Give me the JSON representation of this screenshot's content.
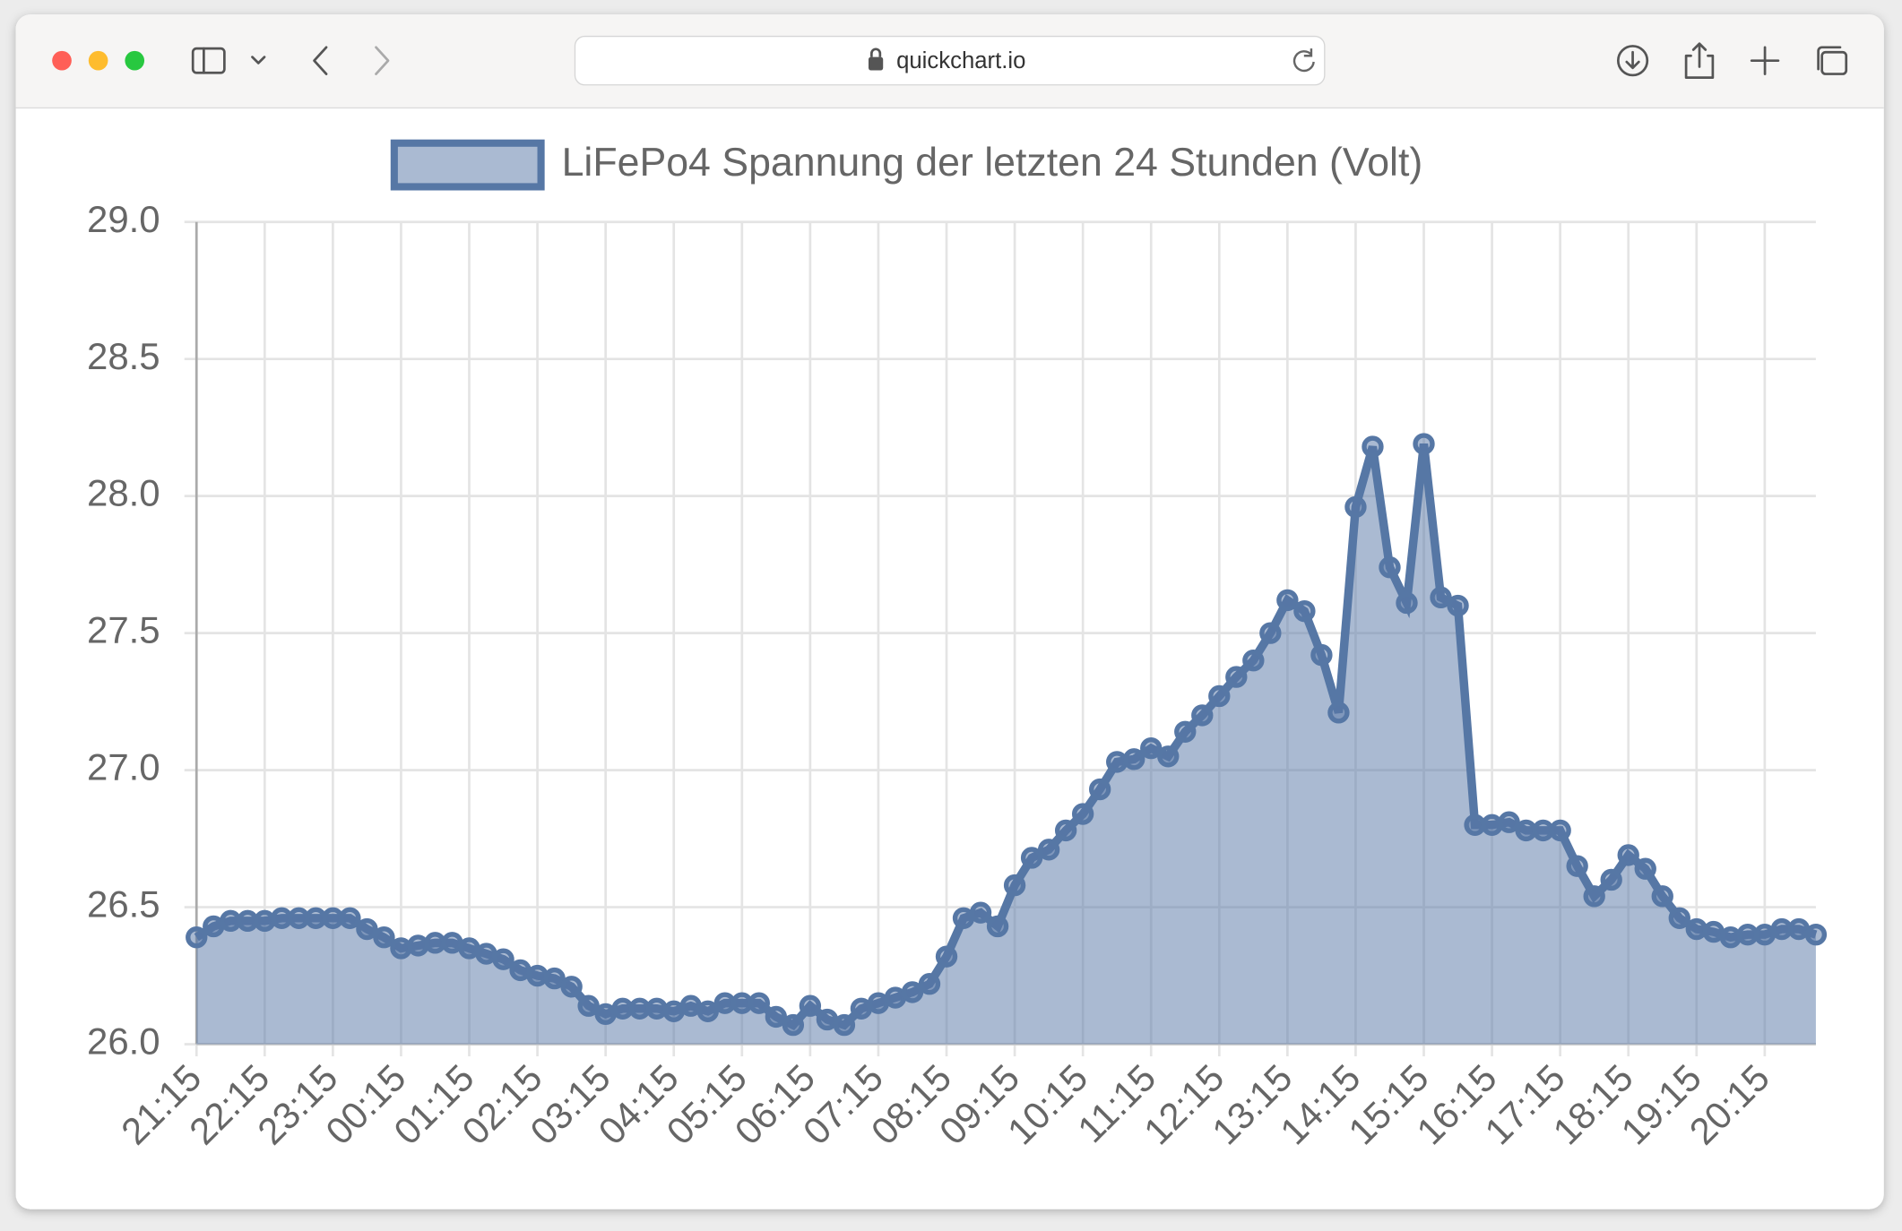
{
  "browser": {
    "url": "quickchart.io"
  },
  "chart_data": {
    "type": "line",
    "categories": [
      "21:15",
      null,
      null,
      null,
      "22:15",
      null,
      null,
      null,
      "23:15",
      null,
      null,
      null,
      "00:15",
      null,
      null,
      null,
      "01:15",
      null,
      null,
      null,
      "02:15",
      null,
      null,
      null,
      "03:15",
      null,
      null,
      null,
      "04:15",
      null,
      null,
      null,
      "05:15",
      null,
      null,
      null,
      "06:15",
      null,
      null,
      null,
      "07:15",
      null,
      null,
      null,
      "08:15",
      null,
      null,
      null,
      "09:15",
      null,
      null,
      null,
      "10:15",
      null,
      null,
      null,
      "11:15",
      null,
      null,
      null,
      "12:15",
      null,
      null,
      null,
      "13:15",
      null,
      null,
      null,
      "14:15",
      null,
      null,
      null,
      "15:15",
      null,
      null,
      null,
      "16:15",
      null,
      null,
      null,
      "17:15",
      null,
      null,
      null,
      "18:15",
      null,
      null,
      null,
      "19:15",
      null,
      null,
      null,
      "20:15",
      null,
      null,
      null
    ],
    "series": [
      {
        "name": "LiFePo4 Spannung der letzten 24 Stunden (Volt)",
        "color": "#5677a5",
        "fill": "rgba(86,117,165,0.5)",
        "values": [
          26.39,
          26.43,
          26.45,
          26.45,
          26.45,
          26.46,
          26.46,
          26.46,
          26.46,
          26.46,
          26.42,
          26.39,
          26.35,
          26.36,
          26.37,
          26.37,
          26.35,
          26.33,
          26.31,
          26.27,
          26.25,
          26.24,
          26.21,
          26.14,
          26.11,
          26.13,
          26.13,
          26.13,
          26.12,
          26.14,
          26.12,
          26.15,
          26.15,
          26.15,
          26.1,
          26.07,
          26.14,
          26.09,
          26.07,
          26.13,
          26.15,
          26.17,
          26.19,
          26.22,
          26.32,
          26.46,
          26.48,
          26.43,
          26.58,
          26.68,
          26.71,
          26.78,
          26.84,
          26.93,
          27.03,
          27.04,
          27.08,
          27.05,
          27.14,
          27.2,
          27.27,
          27.34,
          27.4,
          27.5,
          27.62,
          27.58,
          27.42,
          27.21,
          27.96,
          28.18,
          27.74,
          27.61,
          28.19,
          27.63,
          27.6,
          26.8,
          26.8,
          26.81,
          26.78,
          26.78,
          26.78,
          26.65,
          26.54,
          26.6,
          26.69,
          26.64,
          26.54,
          26.46,
          26.42,
          26.41,
          26.39,
          26.4,
          26.4,
          26.42,
          26.42,
          26.4
        ]
      }
    ],
    "ylim": [
      26,
      29
    ],
    "yticks": [
      {
        "value": 26,
        "label": "26.0"
      },
      26.5,
      {
        "value": 27,
        "label": "27.0"
      },
      27.5,
      {
        "value": 28,
        "label": "28.0"
      },
      28.5,
      {
        "value": 29,
        "label": "29.0"
      }
    ],
    "grid": true,
    "legend": "top",
    "fill_area": true
  }
}
